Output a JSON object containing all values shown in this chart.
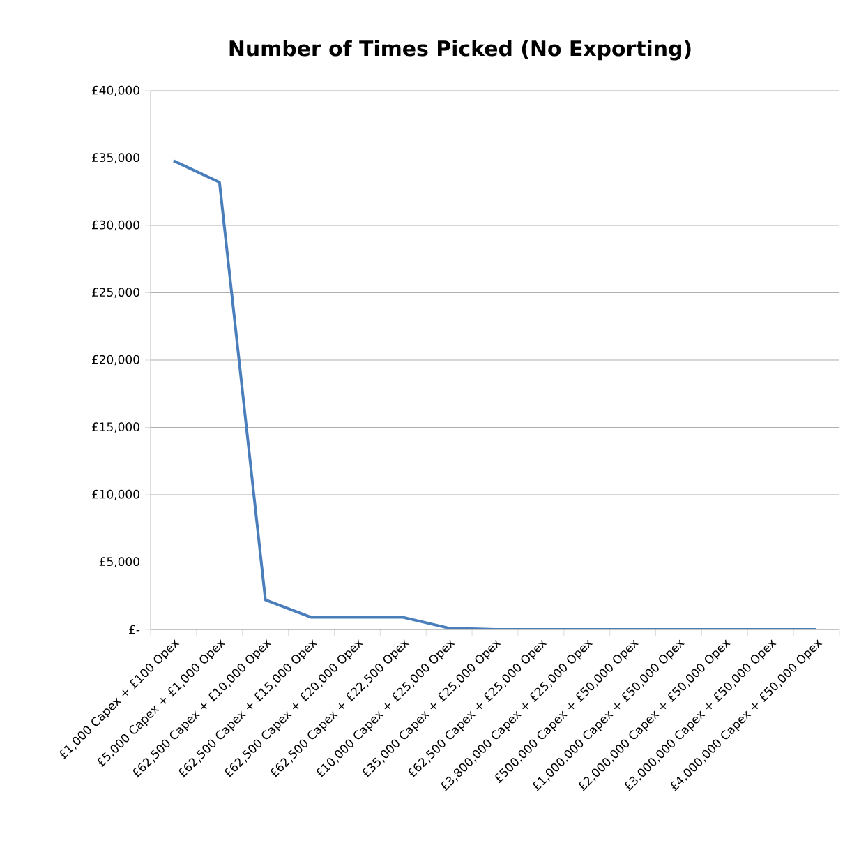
{
  "chart_data": {
    "type": "line",
    "title": "Number of Times Picked (No Exporting)",
    "categories": [
      "£1,000 Capex + £100 Opex",
      "£5,000 Capex + £1,000 Opex",
      "£62,500 Capex + £10,000 Opex",
      "£62,500 Capex + £15,000 Opex",
      "£62,500 Capex + £20,000 Opex",
      "£62,500 Capex + £22,500 Opex",
      "£10,000 Capex + £25,000 Opex",
      "£35,000 Capex + £25,000 Opex",
      "£62,500 Capex + £25,000 Opex",
      "£3,800,000 Capex + £25,000 Opex",
      "£500,000 Capex + £50,000 Opex",
      "£1,000,000 Capex + £50,000 Opex",
      "£2,000,000 Capex + £50,000 Opex",
      "£3,000,000 Capex + £50,000 Opex",
      "£4,000,000 Capex + £50,000 Opex"
    ],
    "values": [
      34800,
      33200,
      2200,
      900,
      900,
      900,
      100,
      0,
      0,
      0,
      0,
      0,
      0,
      0,
      0
    ],
    "color": "#4a7ebb",
    "ylim": [
      0,
      40000
    ],
    "yticks": [
      {
        "value": 0,
        "label": "£-"
      },
      {
        "value": 5000,
        "label": "£5,000"
      },
      {
        "value": 10000,
        "label": "£10,000"
      },
      {
        "value": 15000,
        "label": "£15,000"
      },
      {
        "value": 20000,
        "label": "£20,000"
      },
      {
        "value": 25000,
        "label": "£25,000"
      },
      {
        "value": 30000,
        "label": "£30,000"
      },
      {
        "value": 35000,
        "label": "£35,000"
      },
      {
        "value": 40000,
        "label": "£40,000"
      }
    ],
    "grid": "y",
    "marker": "none",
    "line_style": "solid"
  }
}
